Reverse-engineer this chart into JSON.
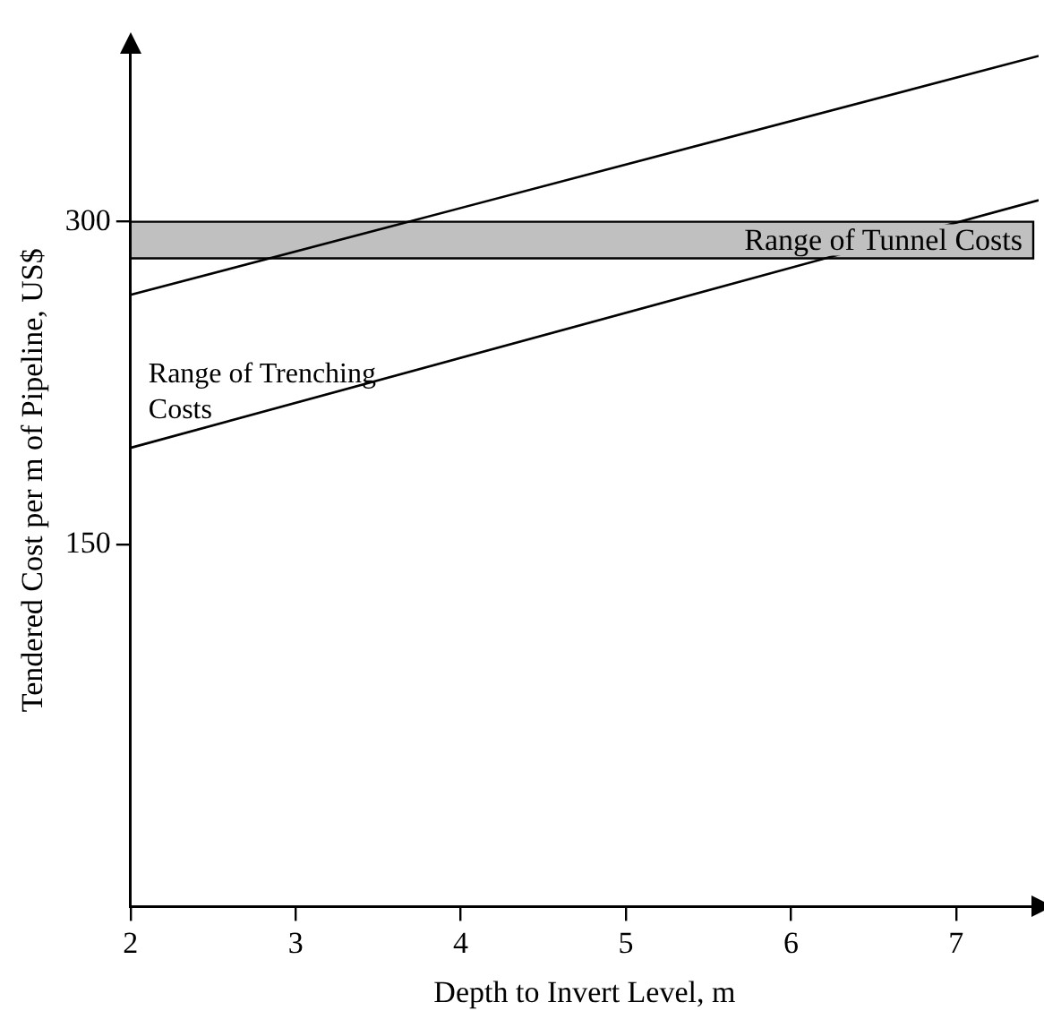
{
  "chart_data": {
    "type": "line",
    "xlabel": "Depth to Invert Level, m",
    "ylabel": "Tendered Cost per m of Pipeline, US$",
    "x": [
      2,
      7.5
    ],
    "series": [
      {
        "color": "#000000",
        "values": [
          266,
          377
        ]
      },
      {
        "color": "#000000",
        "values": [
          195,
          310
        ]
      }
    ],
    "xlim": [
      2,
      7.5
    ],
    "xticks": [
      2,
      3,
      4,
      5,
      6,
      7
    ],
    "ylim": [
      -18,
      378
    ],
    "yticks": [
      150,
      300
    ],
    "bands": [
      {
        "axis": "y",
        "from": 283,
        "to": 300,
        "label": "Range of Tunnel Costs",
        "color": "#c0c0c0"
      }
    ],
    "annotations": [
      "Range of Trenching Costs"
    ],
    "grid": false,
    "legend": false,
    "marker": "none",
    "line_style": "solid"
  }
}
